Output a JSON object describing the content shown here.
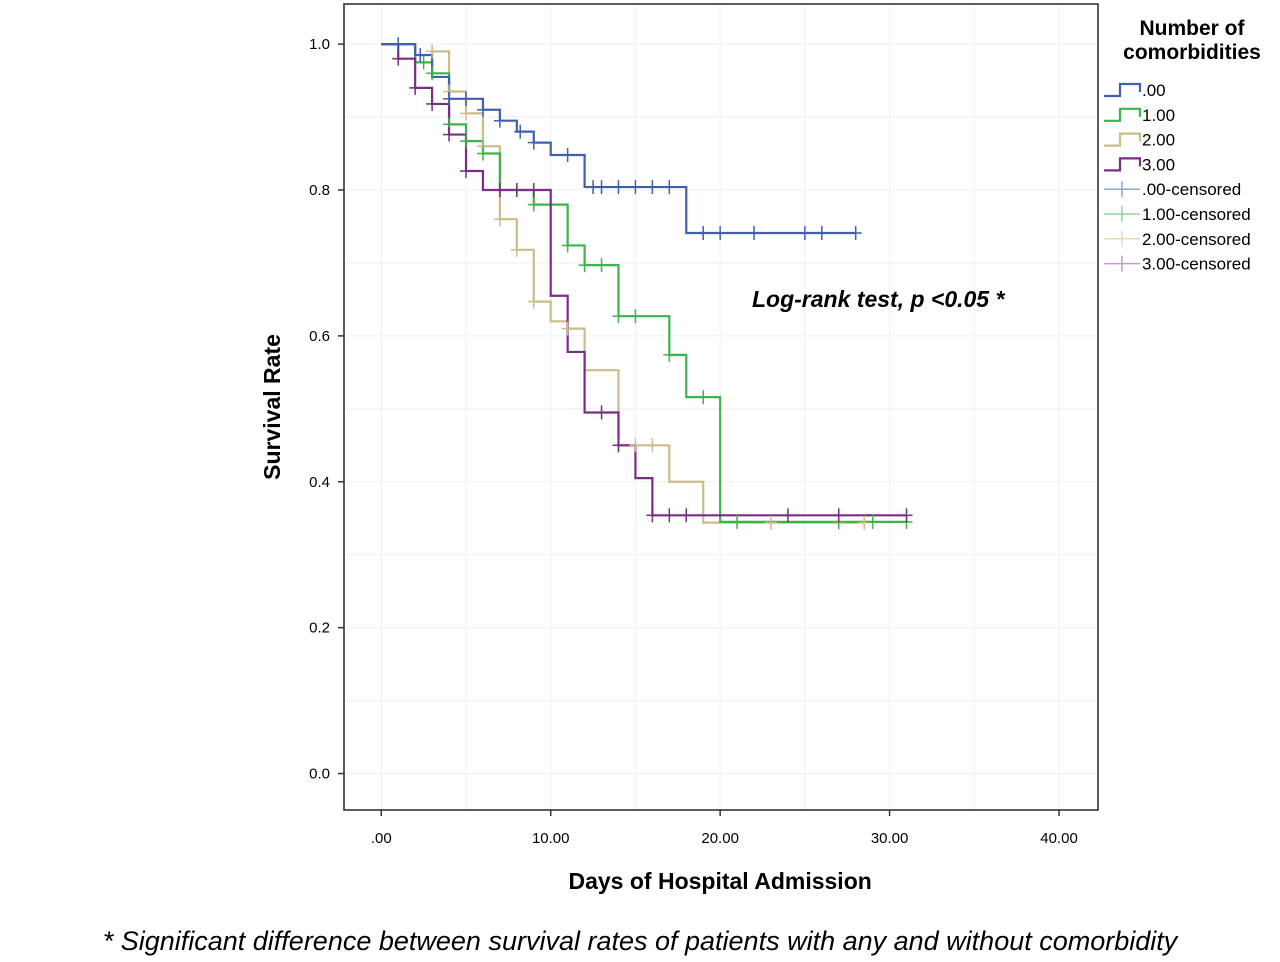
{
  "chart_data": {
    "type": "line",
    "subtype": "kaplan-meier step",
    "xlabel": "Days of Hospital Admission",
    "ylabel": "Survival Rate",
    "xlim": [
      -2.2,
      42.3
    ],
    "ylim": [
      -0.05,
      1.055
    ],
    "xticks": [
      0,
      10,
      20,
      30,
      40
    ],
    "xtick_labels": [
      ".00",
      "10.00",
      "20.00",
      "30.00",
      "40.00"
    ],
    "yticks": [
      0,
      0.2,
      0.4,
      0.6,
      0.8,
      1.0
    ],
    "ytick_labels": [
      "0.0",
      "0.2",
      "0.4",
      "0.6",
      "0.8",
      "1.0"
    ],
    "grid": true,
    "legend_title": "Number of comorbidities",
    "legend_position": "right",
    "annotation": "Log-rank test, p <0.05 *",
    "series": [
      {
        "name": ".00",
        "color": "#3f5fb0",
        "steps": [
          [
            0,
            1.0
          ],
          [
            2,
            0.985
          ],
          [
            3,
            0.955
          ],
          [
            4,
            0.925
          ],
          [
            6,
            0.91
          ],
          [
            7,
            0.895
          ],
          [
            8,
            0.88
          ],
          [
            9,
            0.865
          ],
          [
            10,
            0.848
          ],
          [
            12,
            0.804
          ],
          [
            18,
            0.741
          ],
          [
            28,
            0.741
          ]
        ],
        "censored": [
          [
            1,
            1.0
          ],
          [
            2.3,
            0.985
          ],
          [
            4,
            0.925
          ],
          [
            5,
            0.925
          ],
          [
            6,
            0.91
          ],
          [
            7,
            0.895
          ],
          [
            8.2,
            0.88
          ],
          [
            9,
            0.865
          ],
          [
            11,
            0.848
          ],
          [
            12.5,
            0.804
          ],
          [
            13,
            0.804
          ],
          [
            14,
            0.804
          ],
          [
            15,
            0.804
          ],
          [
            16,
            0.804
          ],
          [
            17,
            0.804
          ],
          [
            19,
            0.741
          ],
          [
            20,
            0.741
          ],
          [
            22,
            0.741
          ],
          [
            25,
            0.741
          ],
          [
            26,
            0.741
          ],
          [
            28,
            0.741
          ]
        ]
      },
      {
        "name": "1.00",
        "color": "#3db34b",
        "steps": [
          [
            0,
            1.0
          ],
          [
            2,
            0.975
          ],
          [
            3,
            0.96
          ],
          [
            4,
            0.89
          ],
          [
            5,
            0.867
          ],
          [
            6,
            0.85
          ],
          [
            7,
            0.8
          ],
          [
            9,
            0.78
          ],
          [
            11,
            0.724
          ],
          [
            12,
            0.697
          ],
          [
            14,
            0.627
          ],
          [
            17,
            0.574
          ],
          [
            18,
            0.516
          ],
          [
            20,
            0.345
          ],
          [
            31,
            0.345
          ]
        ],
        "censored": [
          [
            2.5,
            0.975
          ],
          [
            3,
            0.96
          ],
          [
            4,
            0.89
          ],
          [
            5,
            0.867
          ],
          [
            6,
            0.85
          ],
          [
            8,
            0.8
          ],
          [
            9,
            0.78
          ],
          [
            11,
            0.724
          ],
          [
            12,
            0.697
          ],
          [
            13,
            0.697
          ],
          [
            14,
            0.627
          ],
          [
            15,
            0.627
          ],
          [
            17,
            0.574
          ],
          [
            19,
            0.516
          ],
          [
            21,
            0.345
          ],
          [
            27,
            0.345
          ],
          [
            29,
            0.345
          ],
          [
            31,
            0.345
          ]
        ]
      },
      {
        "name": "2.00",
        "color": "#cbbc8a",
        "steps": [
          [
            0,
            1.0
          ],
          [
            2,
            0.985
          ],
          [
            3,
            0.99
          ],
          [
            4,
            0.935
          ],
          [
            5,
            0.905
          ],
          [
            6,
            0.86
          ],
          [
            7,
            0.76
          ],
          [
            8,
            0.718
          ],
          [
            9,
            0.647
          ],
          [
            10,
            0.62
          ],
          [
            11,
            0.61
          ],
          [
            12,
            0.553
          ],
          [
            14,
            0.45
          ],
          [
            16,
            0.45
          ],
          [
            17,
            0.4
          ],
          [
            19,
            0.344
          ],
          [
            28.5,
            0.344
          ]
        ],
        "censored": [
          [
            3,
            0.99
          ],
          [
            4,
            0.935
          ],
          [
            5,
            0.905
          ],
          [
            6,
            0.86
          ],
          [
            7,
            0.76
          ],
          [
            8,
            0.718
          ],
          [
            9,
            0.647
          ],
          [
            11,
            0.61
          ],
          [
            14,
            0.45
          ],
          [
            15,
            0.45
          ],
          [
            16,
            0.45
          ],
          [
            23,
            0.344
          ],
          [
            27,
            0.344
          ],
          [
            28.5,
            0.344
          ]
        ]
      },
      {
        "name": "3.00",
        "color": "#7a2d86",
        "steps": [
          [
            0,
            1.0
          ],
          [
            1,
            0.98
          ],
          [
            2,
            0.94
          ],
          [
            3,
            0.918
          ],
          [
            4,
            0.876
          ],
          [
            5,
            0.826
          ],
          [
            6,
            0.8
          ],
          [
            10,
            0.655
          ],
          [
            11,
            0.578
          ],
          [
            12,
            0.495
          ],
          [
            14,
            0.45
          ],
          [
            15,
            0.405
          ],
          [
            16,
            0.354
          ],
          [
            31,
            0.354
          ]
        ],
        "censored": [
          [
            1,
            0.98
          ],
          [
            2,
            0.94
          ],
          [
            3,
            0.918
          ],
          [
            4,
            0.876
          ],
          [
            5,
            0.826
          ],
          [
            7,
            0.8
          ],
          [
            8,
            0.8
          ],
          [
            9,
            0.8
          ],
          [
            13,
            0.495
          ],
          [
            14,
            0.45
          ],
          [
            16,
            0.354
          ],
          [
            17,
            0.354
          ],
          [
            18,
            0.354
          ],
          [
            24,
            0.354
          ],
          [
            27,
            0.354
          ],
          [
            31,
            0.354
          ]
        ]
      }
    ],
    "legend_entries": [
      {
        "label": ".00",
        "kind": "line",
        "color": "#3f5fb0"
      },
      {
        "label": "1.00",
        "kind": "line",
        "color": "#3db34b"
      },
      {
        "label": "2.00",
        "kind": "line",
        "color": "#cbbc8a"
      },
      {
        "label": "3.00",
        "kind": "line",
        "color": "#7a2d86"
      },
      {
        "label": ".00-censored",
        "kind": "censored",
        "color": "#8fa3d6"
      },
      {
        "label": "1.00-censored",
        "kind": "censored",
        "color": "#8fd59a"
      },
      {
        "label": "2.00-censored",
        "kind": "censored",
        "color": "#e3dabc"
      },
      {
        "label": "3.00-censored",
        "kind": "censored",
        "color": "#c59bcc"
      }
    ]
  },
  "footnote": "* Significant difference between survival rates of patients with any and without comorbidity"
}
